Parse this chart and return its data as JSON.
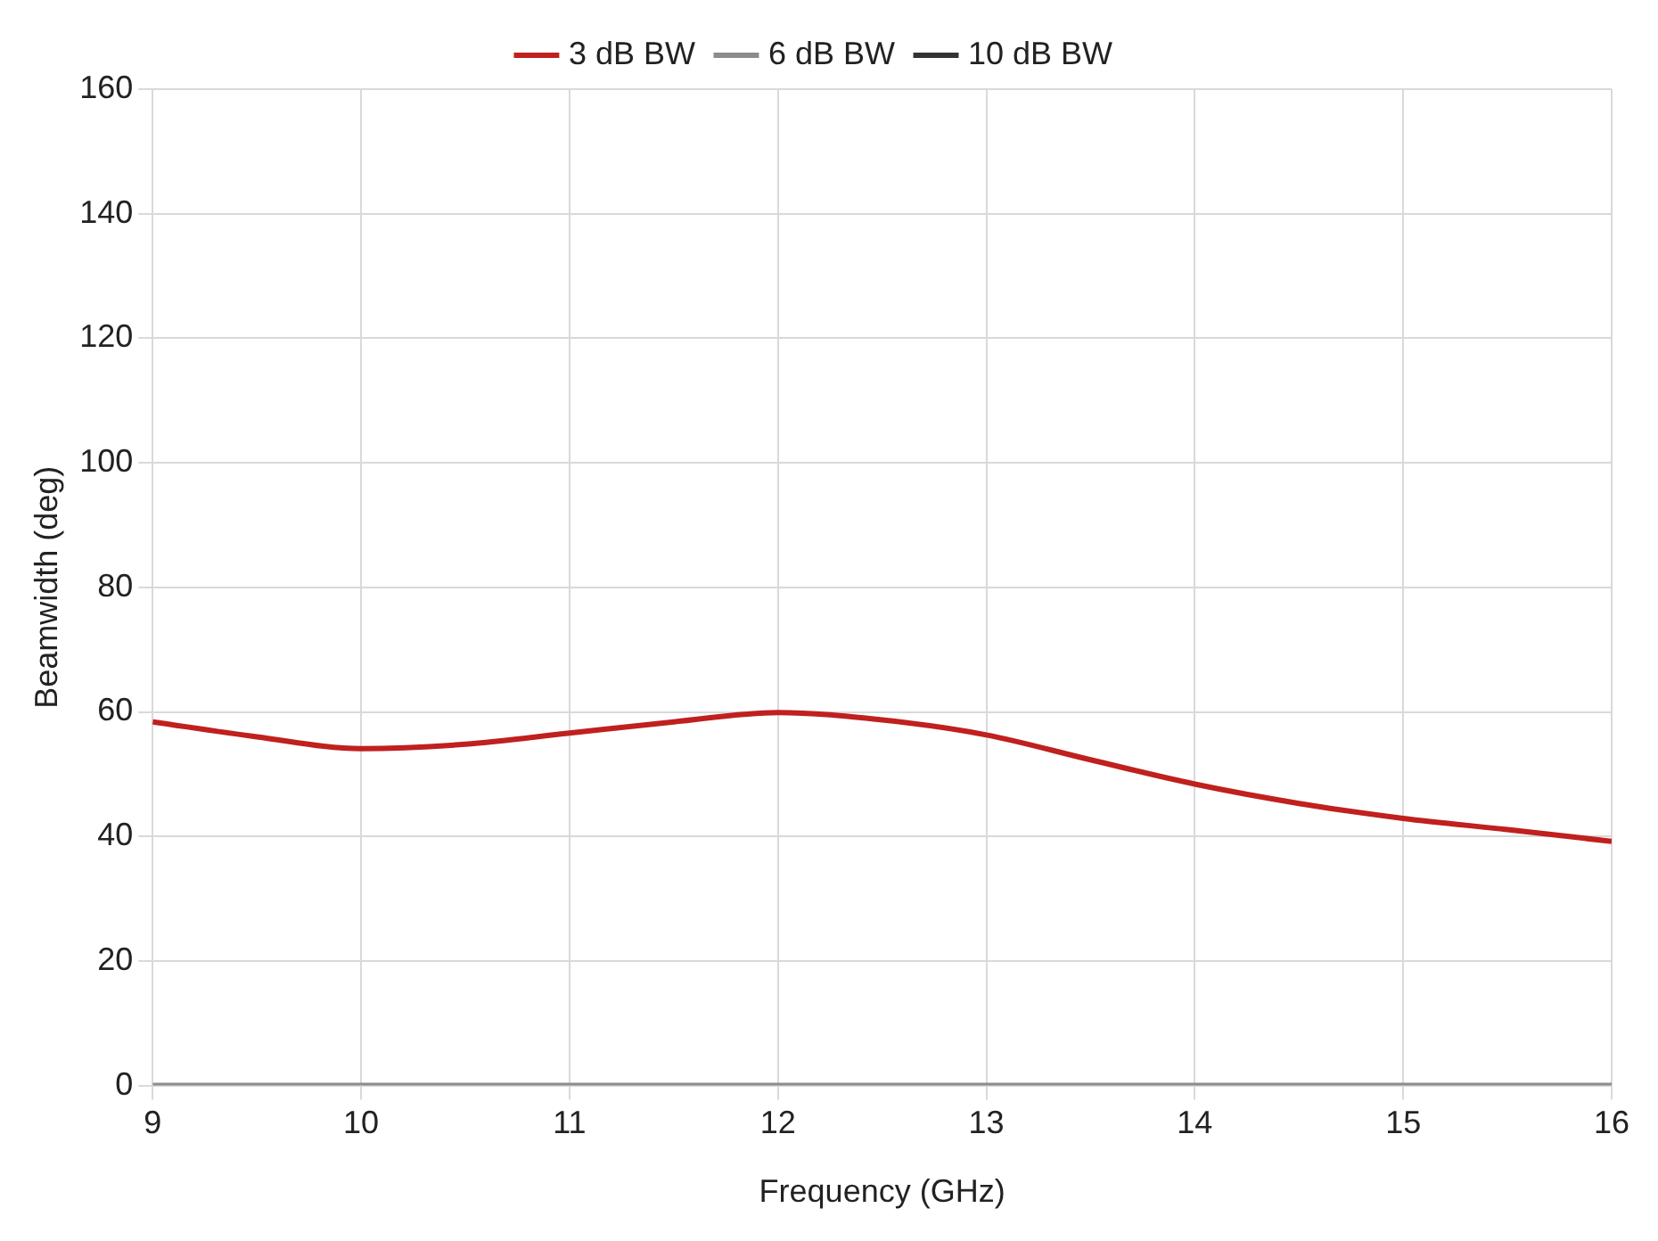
{
  "chart_data": {
    "type": "line",
    "xlabel": "Frequency (GHz)",
    "ylabel": "Beamwidth (deg)",
    "x": [
      9,
      9.5,
      10,
      10.5,
      11,
      11.5,
      12,
      12.5,
      13,
      13.5,
      14,
      14.5,
      15,
      15.5,
      16
    ],
    "series": [
      {
        "name": "3 dB BW",
        "color": "#c0201e",
        "values": [
          58.4,
          56,
          54.1,
          54.8,
          56.6,
          58.4,
          59.9,
          58.7,
          56.3,
          52.3,
          48.4,
          45.3,
          42.9,
          41.1,
          39.2
        ]
      },
      {
        "name": "6 dB BW",
        "color": "#8c8c8c",
        "values": [
          0,
          0,
          0,
          0,
          0,
          0,
          0,
          0,
          0,
          0,
          0,
          0,
          0,
          0,
          0
        ]
      },
      {
        "name": "10 dB BW",
        "color": "#333333",
        "values": [
          null,
          null,
          null,
          null,
          null,
          null,
          null,
          null,
          null,
          null,
          null,
          null,
          null,
          null,
          null
        ]
      }
    ],
    "xlim": [
      9,
      16
    ],
    "xticks": [
      9,
      10,
      11,
      12,
      13,
      14,
      15,
      16
    ],
    "ylim": [
      0,
      160
    ],
    "yticks": [
      0,
      20,
      40,
      60,
      80,
      100,
      120,
      140,
      160
    ],
    "grid": true,
    "legend": "top",
    "marker": "none",
    "line_style": "solid"
  }
}
